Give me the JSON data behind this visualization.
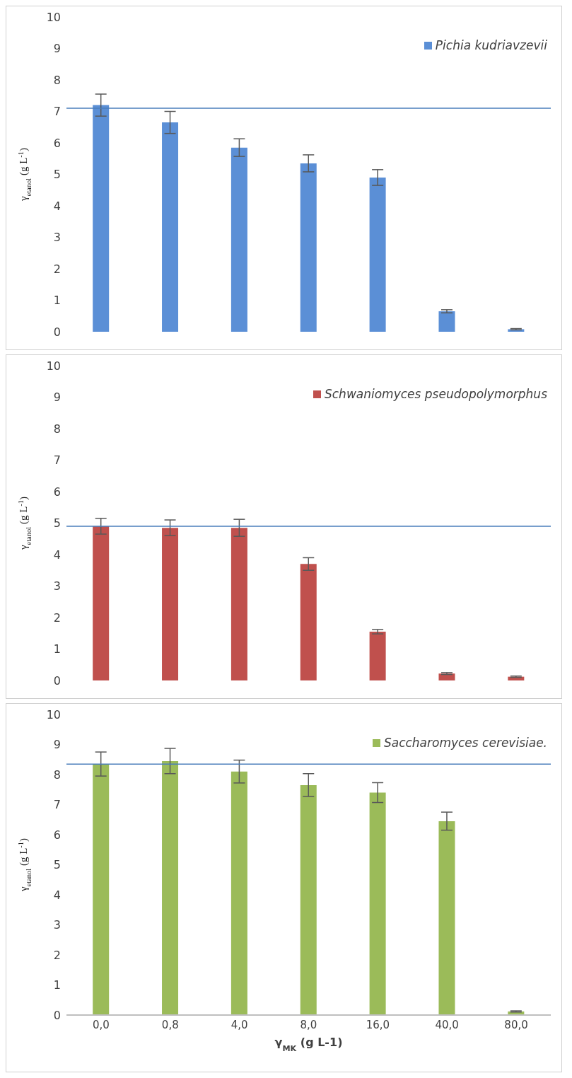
{
  "chart_data": [
    {
      "type": "bar",
      "ylabel": "γ$_{etanol}$ (g L$^{-1}$)",
      "categories": [
        "0,0",
        "0,8",
        "4,0",
        "8,0",
        "16,0",
        "40,0",
        "80,0"
      ],
      "tick_labels": "y",
      "series": [
        {
          "name": "Pichia kudriavzevii",
          "color": "#5b8fd6",
          "values": [
            7.2,
            6.65,
            5.85,
            5.35,
            4.9,
            0.65,
            0.08
          ],
          "errors": [
            0.35,
            0.35,
            0.28,
            0.27,
            0.25,
            0.05,
            0.02
          ]
        }
      ],
      "ref_lines": [
        {
          "axis": "y",
          "value": 7.1,
          "color": "#4a7ebb"
        }
      ],
      "ylim": [
        0,
        10
      ],
      "yticks": [
        0,
        1,
        2,
        3,
        4,
        5,
        6,
        7,
        8,
        9,
        10
      ],
      "legend": "top right"
    },
    {
      "type": "bar",
      "ylabel": "γ$_{etanol}$ (g L$^{-1}$)",
      "categories": [
        "0,0",
        "0,8",
        "4,0",
        "8,0",
        "16,0",
        "40,0",
        "80,0"
      ],
      "tick_labels": "y",
      "series": [
        {
          "name": "Schwaniomyces pseudopolymorphus",
          "color": "#c0504d",
          "values": [
            4.9,
            4.85,
            4.85,
            3.7,
            1.55,
            0.22,
            0.12
          ],
          "errors": [
            0.25,
            0.25,
            0.27,
            0.2,
            0.07,
            0.03,
            0.02
          ]
        }
      ],
      "ref_lines": [
        {
          "axis": "y",
          "value": 4.9,
          "color": "#4a7ebb"
        }
      ],
      "ylim": [
        0,
        10
      ],
      "yticks": [
        0,
        1,
        2,
        3,
        4,
        5,
        6,
        7,
        8,
        9,
        10
      ],
      "legend": "top right"
    },
    {
      "type": "bar",
      "ylabel": "γ$_{etanol}$ (g L$^{-1}$)",
      "xlabel": "γ$_{MK}$ (g L-1)",
      "categories": [
        "0,0",
        "0,8",
        "4,0",
        "8,0",
        "16,0",
        "40,0",
        "80,0"
      ],
      "series": [
        {
          "name": "Saccharomyces cerevisiae.",
          "color": "#9bbb59",
          "values": [
            8.35,
            8.45,
            8.1,
            7.65,
            7.4,
            6.45,
            0.12
          ],
          "errors": [
            0.4,
            0.42,
            0.38,
            0.38,
            0.33,
            0.3,
            0.02
          ]
        }
      ],
      "ref_lines": [
        {
          "axis": "y",
          "value": 8.35,
          "color": "#4a7ebb"
        }
      ],
      "ylim": [
        0,
        10
      ],
      "yticks": [
        0,
        1,
        2,
        3,
        4,
        5,
        6,
        7,
        8,
        9,
        10
      ],
      "legend": "top right"
    }
  ]
}
